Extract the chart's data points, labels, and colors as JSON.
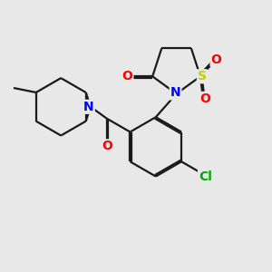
{
  "bg_color": "#e8e8e8",
  "bond_color": "#1a1a1a",
  "atom_colors": {
    "O": "#ff0000",
    "N": "#0000ff",
    "S": "#cccc00",
    "Cl": "#00aa00",
    "C": "#1a1a1a"
  },
  "font_size": 9,
  "lw": 1.6,
  "figsize": [
    3.0,
    3.0
  ],
  "dpi": 100
}
